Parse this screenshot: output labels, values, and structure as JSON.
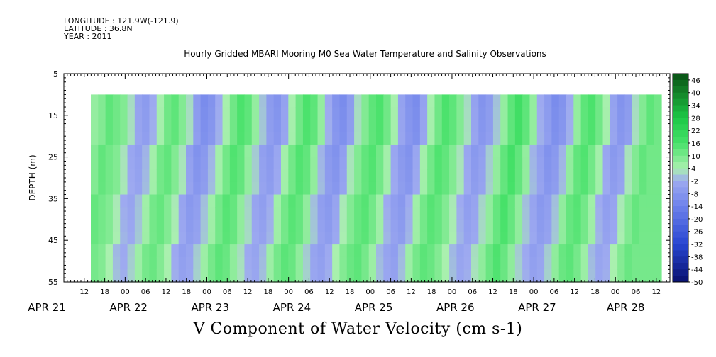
{
  "header": {
    "longitude": "LONGITUDE : 121.9W(-121.9)",
    "latitude": "LATITUDE : 36.8N",
    "year": "YEAR : 2011"
  },
  "chart_data": {
    "type": "heatmap",
    "title": "Hourly Gridded MBARI Mooring M0 Sea Water Temperature and Salinity Observations",
    "xlabel_bottom": "V Component of Water Velocity (cm s-1)",
    "ylabel": "DEPTH (m)",
    "y_ticks": [
      5,
      15,
      25,
      35,
      45,
      55
    ],
    "ylim": [
      55,
      5
    ],
    "data_depth_range": [
      10,
      55
    ],
    "x_hour_ticks": [
      "12",
      "18",
      "00",
      "06",
      "12",
      "18",
      "00",
      "06",
      "12",
      "18",
      "00",
      "06",
      "12",
      "18",
      "00",
      "06",
      "12",
      "18",
      "00",
      "06",
      "12",
      "18",
      "00",
      "06",
      "12",
      "18",
      "00",
      "06",
      "12",
      "18",
      "00",
      "06"
    ],
    "x_day_labels": [
      "APR 21",
      "APR 22",
      "APR 23",
      "APR 24",
      "APR 25",
      "APR 26",
      "APR 27",
      "APR 28"
    ],
    "colorbar": {
      "labels": [
        "46",
        "40",
        "34",
        "28",
        "22",
        "16",
        "10",
        "4",
        "-2",
        "-8",
        "-14",
        "-20",
        "-26",
        "-32",
        "-38",
        "-44",
        "-50"
      ],
      "range": [
        -50,
        49
      ]
    },
    "colors": {
      "strong_positive": "#0a5d14",
      "positive": "#2fe45a",
      "weak_positive": "#9af0a2",
      "weak_negative": "#9aa8ee",
      "negative": "#4c68e0",
      "strong_negative": "#0a1a80"
    },
    "column_profile": [
      3,
      4,
      6,
      5,
      4,
      1,
      -2,
      -3,
      -1,
      2,
      5,
      6,
      4,
      1,
      -3,
      -5,
      -4,
      -1,
      2,
      5,
      7,
      6,
      3,
      0,
      -3,
      -4,
      -2,
      2,
      5,
      7,
      6,
      3,
      -1,
      -4,
      -5,
      -3,
      1,
      4,
      6,
      7,
      5,
      2,
      -2,
      -4,
      -5,
      -2,
      2,
      5,
      7,
      6,
      4,
      1,
      -2,
      -4,
      -3,
      0,
      3,
      6,
      8,
      6,
      3,
      -1,
      -3,
      -5,
      -4,
      -1,
      3,
      6,
      7,
      5,
      2,
      -2,
      -4,
      -3,
      1,
      4,
      6,
      5
    ]
  }
}
